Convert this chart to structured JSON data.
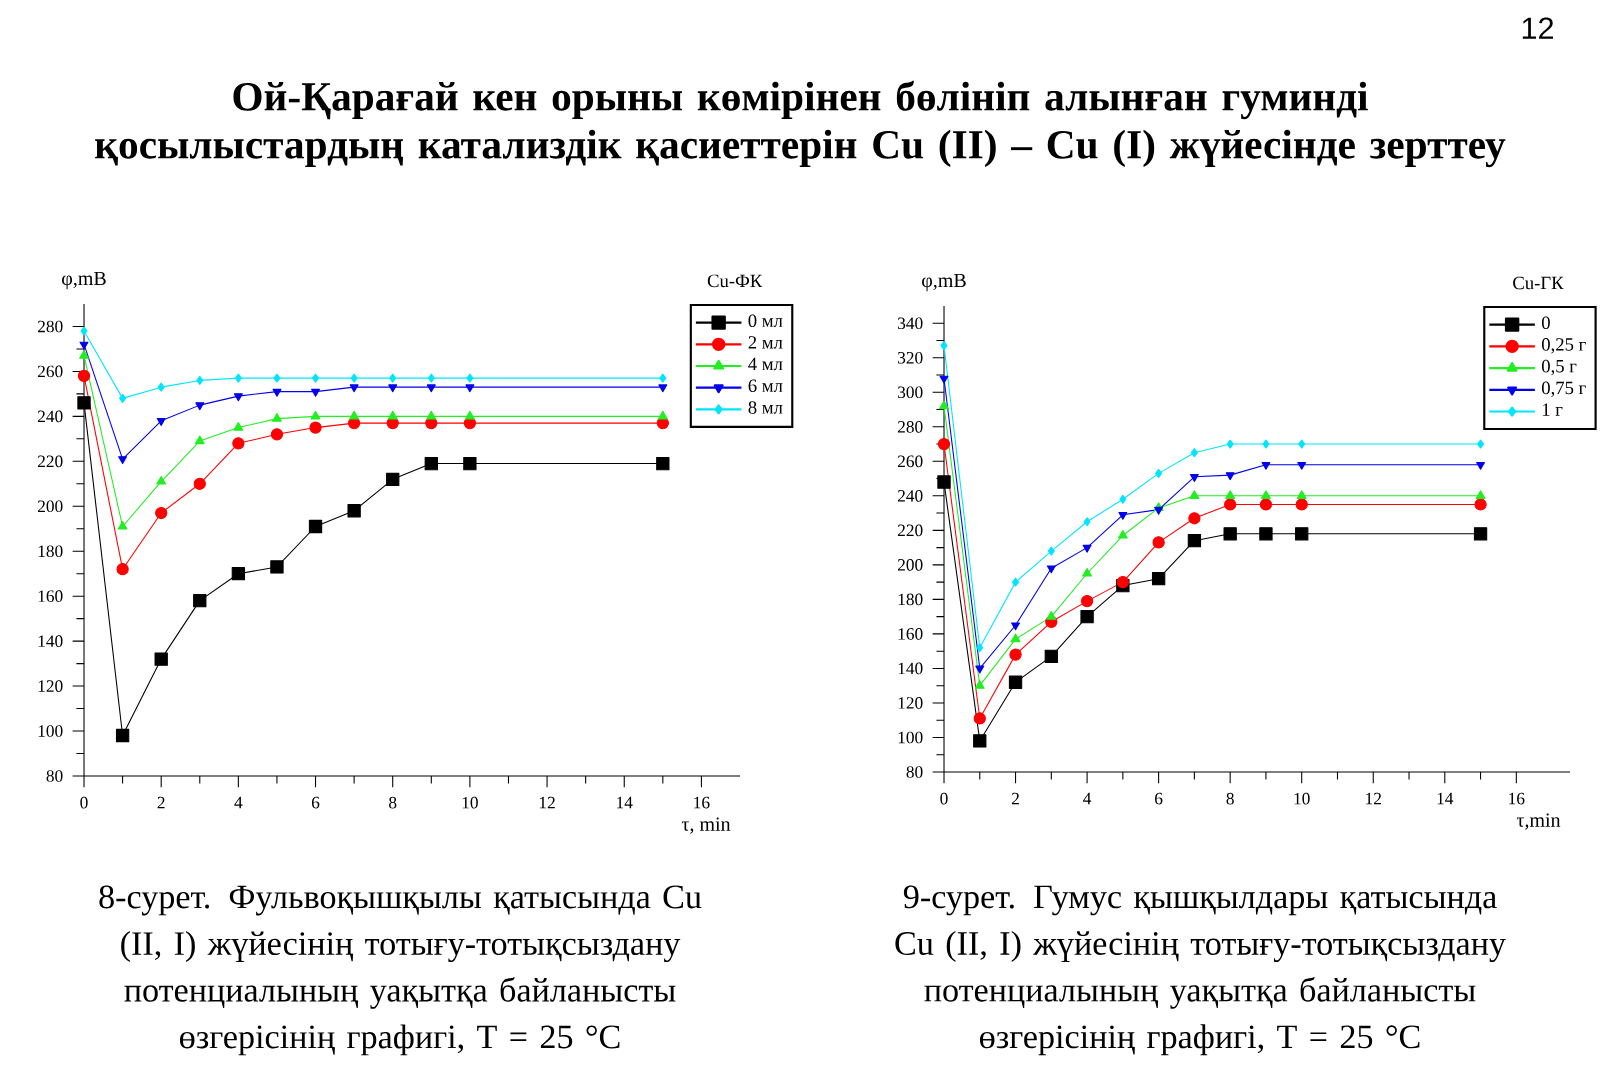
{
  "chart_data": [
    {
      "type": "line",
      "title": "Ой-Қарағай кен орыны көмірінен бөлініп алынған гуминді қосылыстардың катализдік қасиеттерін Cu (II) – Cu (I) жүйесінде зерттеу",
      "xlabel": "τ, min",
      "ylabel": "φ,mB",
      "legend_title": "Cu-ФК",
      "legend": "top right",
      "annotations": [
        "12",
        "8-сурет. Фульвоқышқылы қатысында Cu (II, I) жүйесінің тотығу-тотықсыздану потенциалының уақытқа байланысты өзгерісінің графигі, Т = 25 °С"
      ],
      "x": [
        0,
        1,
        2,
        3,
        4,
        5,
        6,
        7,
        8,
        9,
        10,
        15
      ],
      "xlim": [
        0,
        17
      ],
      "xticks": [
        0,
        2,
        4,
        6,
        8,
        10,
        12,
        14,
        16
      ],
      "ylim": [
        80,
        290
      ],
      "yticks": [
        80,
        100,
        120,
        140,
        160,
        180,
        200,
        220,
        240,
        260,
        280
      ],
      "series": [
        {
          "name": "0 мл",
          "color": "#000000",
          "marker": "square",
          "values": [
            246,
            98,
            132,
            158,
            170,
            173,
            191,
            198,
            212,
            219,
            219,
            219
          ]
        },
        {
          "name": "2 мл",
          "color": "#ff0000",
          "marker": "circle",
          "values": [
            258,
            172,
            197,
            210,
            228,
            232,
            235,
            237,
            237,
            237,
            237,
            237
          ]
        },
        {
          "name": "4 мл",
          "color": "#22ee22",
          "marker": "triangle",
          "values": [
            267,
            191,
            211,
            229,
            235,
            239,
            240,
            240,
            240,
            240,
            240,
            240
          ]
        },
        {
          "name": "6 мл",
          "color": "#0000ee",
          "marker": "triangle-down",
          "values": [
            272,
            221,
            238,
            245,
            249,
            251,
            251,
            253,
            253,
            253,
            253,
            253
          ]
        },
        {
          "name": "8 мл",
          "color": "#00e5ff",
          "marker": "diamond",
          "values": [
            278,
            248,
            253,
            256,
            257,
            257,
            257,
            257,
            257,
            257,
            257,
            257
          ]
        }
      ]
    },
    {
      "type": "line",
      "xlabel": "τ,min",
      "ylabel": "φ,mB",
      "legend_title": "Cu-ГК",
      "legend": "top right",
      "annotations": [
        "9-сурет. Гумус қышқылдары қатысында Cu (II, I) жүйесінің тотығу-тотықсыздану потенциалының уақытқа байланысты өзгерісінің графигі, Т = 25 °С"
      ],
      "x": [
        0,
        1,
        2,
        3,
        4,
        5,
        6,
        7,
        8,
        9,
        10,
        15
      ],
      "xlim": [
        0,
        17.5
      ],
      "xticks": [
        0,
        2,
        4,
        6,
        8,
        10,
        12,
        14,
        16
      ],
      "ylim": [
        80,
        350
      ],
      "yticks": [
        80,
        100,
        120,
        140,
        160,
        180,
        200,
        220,
        240,
        260,
        280,
        300,
        320,
        340
      ],
      "series": [
        {
          "name": "0",
          "color": "#000000",
          "marker": "square",
          "values": [
            248,
            98,
            132,
            147,
            170,
            188,
            192,
            214,
            218,
            218,
            218,
            218
          ]
        },
        {
          "name": "0,25 г",
          "color": "#ff0000",
          "marker": "circle",
          "values": [
            270,
            111,
            148,
            167,
            179,
            190,
            213,
            227,
            235,
            235,
            235,
            235
          ]
        },
        {
          "name": "0,5 г",
          "color": "#22ee22",
          "marker": "triangle",
          "values": [
            292,
            130,
            157,
            170,
            195,
            217,
            233,
            240,
            240,
            240,
            240,
            240
          ]
        },
        {
          "name": "0,75 г",
          "color": "#0000ee",
          "marker": "triangle-down",
          "values": [
            308,
            140,
            165,
            198,
            210,
            229,
            232,
            251,
            252,
            258,
            258,
            258
          ]
        },
        {
          "name": "1 г",
          "color": "#00e5ff",
          "marker": "diamond",
          "values": [
            327,
            152,
            190,
            208,
            225,
            238,
            253,
            265,
            270,
            270,
            270,
            270
          ]
        }
      ]
    }
  ]
}
